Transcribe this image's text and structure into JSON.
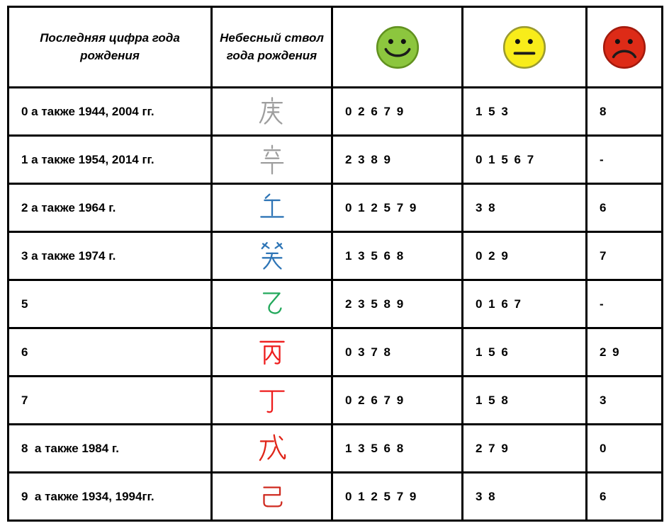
{
  "table": {
    "headers": {
      "last_digit": "Последняя цифра года рождения",
      "heavenly_stem": "Небесный ствол года рождения",
      "good_icon": "green-happy-smiley",
      "neutral_icon": "yellow-neutral-smiley",
      "bad_icon": "red-sad-smiley"
    },
    "smileys": [
      {
        "name": "green-happy-smiley",
        "mood": "happy",
        "fill": "#8CC63E",
        "stroke": "#61911F"
      },
      {
        "name": "yellow-neutral-smiley",
        "mood": "neutral",
        "fill": "#F8EC1A",
        "stroke": "#9A9A30"
      },
      {
        "name": "red-sad-smiley",
        "mood": "sad",
        "fill": "#DD2B17",
        "stroke": "#A31A0D"
      }
    ],
    "rows": [
      {
        "last_digit": "0 а также 1944, 2004 гг.",
        "stem": "庚",
        "stem_color": "#9E9E9E",
        "good": "0 2 6 7 9",
        "neutral": "1 5 3",
        "bad": "8"
      },
      {
        "last_digit": "1 а также 1954, 2014 гг.",
        "stem": "辛",
        "stem_color": "#9E9E9E",
        "good": "2 3 8 9",
        "neutral": "0 1 5 6 7",
        "bad": "-"
      },
      {
        "last_digit": "2 а также 1964 г.",
        "stem": "壬",
        "stem_color": "#2E75B6",
        "good": "0 1 2 5 7 9",
        "neutral": "3 8",
        "bad": "6"
      },
      {
        "last_digit": "3 а также 1974 г.",
        "stem": "癸",
        "stem_color": "#2E75B6",
        "good": "1 3 5 6 8",
        "neutral": "0 2 9",
        "bad": "7"
      },
      {
        "last_digit": "5",
        "stem": "乙",
        "stem_color": "#22A85B",
        "good": "2 3 5 8 9",
        "neutral": "0 1 6 7",
        "bad": "-"
      },
      {
        "last_digit": "6",
        "stem": "丙",
        "stem_color": "#EE1D1D",
        "good": "0 3 7 8",
        "neutral": "1 5 6",
        "bad": "2 9"
      },
      {
        "last_digit": "7",
        "stem": "丁",
        "stem_color": "#EE1D1D",
        "good": "0 2 6 7 9",
        "neutral": "1 5 8",
        "bad": "3"
      },
      {
        "last_digit": "8  а также 1984 г.",
        "stem": "戊",
        "stem_color": "#E02519",
        "good": "1 3 5 6 8",
        "neutral": "2 7 9",
        "bad": "0"
      },
      {
        "last_digit": "9  а также 1934, 1994гг.",
        "stem": "己",
        "stem_color": "#CF2B20",
        "good": "0 1 2 5 7 9",
        "neutral": "3 8",
        "bad": "6"
      }
    ]
  }
}
